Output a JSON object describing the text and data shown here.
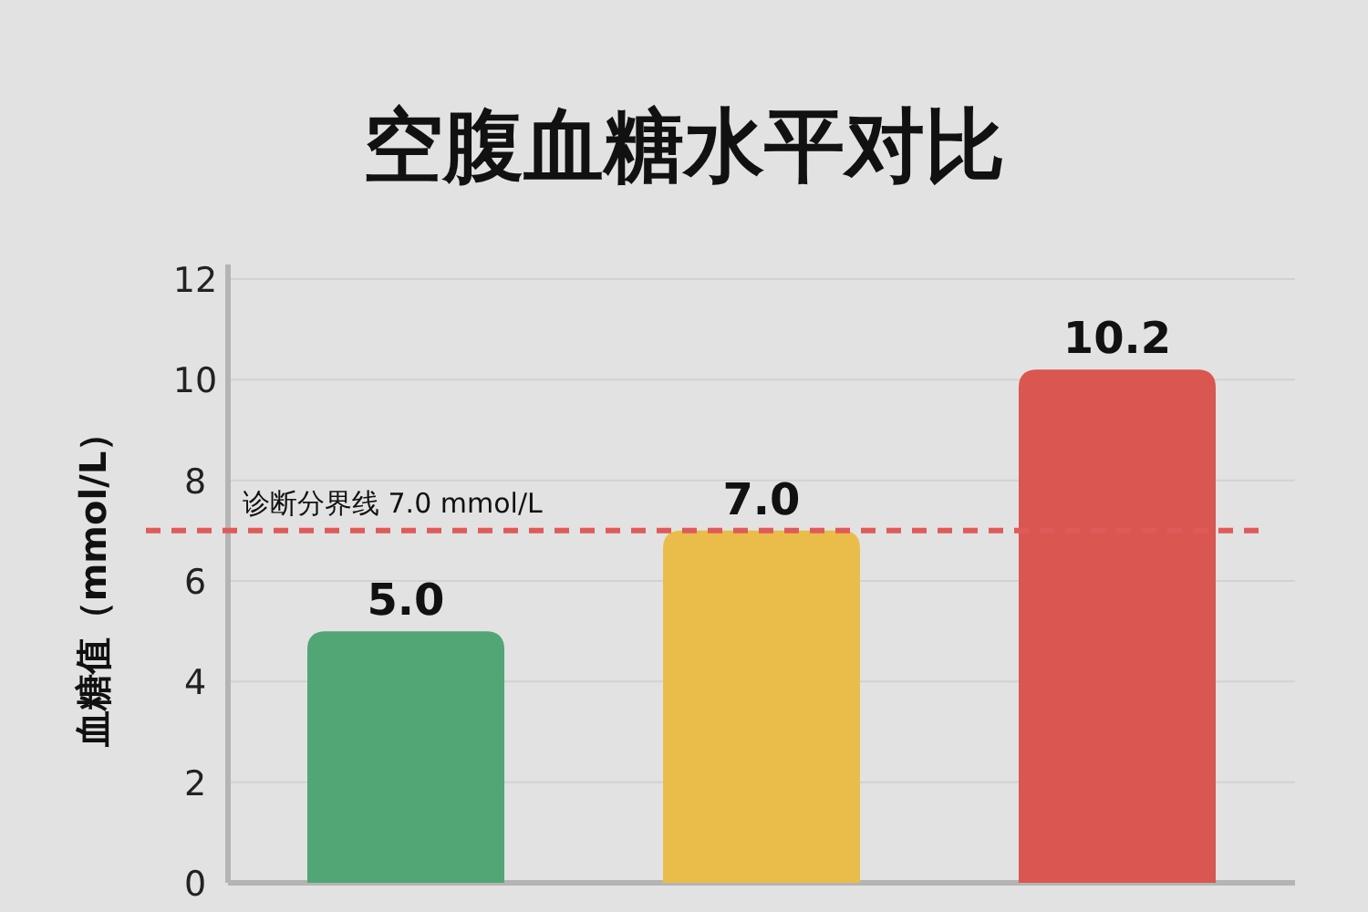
{
  "chart_data": {
    "type": "bar",
    "title": "空腹血糖水平对比",
    "ylabel": "血糖值（mmol/L）",
    "categories": [
      null,
      null,
      null
    ],
    "values": [
      5.0,
      7.0,
      10.2
    ],
    "colors": [
      "#52a574",
      "#eabd4a",
      "#da5650"
    ],
    "value_labels": [
      "5.0",
      "7.0",
      "10.2"
    ],
    "ylim": [
      0,
      12
    ],
    "yticks": [
      0,
      2,
      4,
      6,
      8,
      10,
      12
    ],
    "grid": "y",
    "ref_lines": [
      {
        "axis": "y",
        "value": 7.0,
        "label": "诊断分界线 7.0 mmol/L",
        "color": "#e05a5a",
        "line_style": "dashed"
      }
    ]
  }
}
